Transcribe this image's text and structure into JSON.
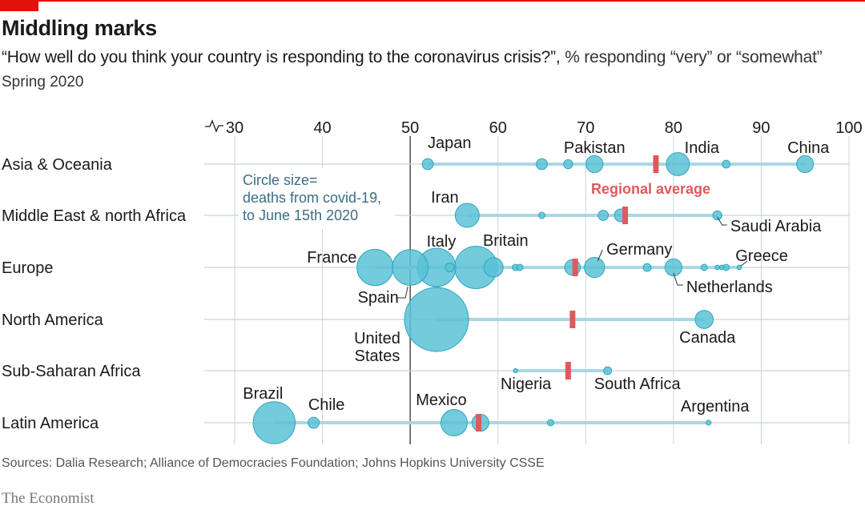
{
  "header": {
    "title": "Middling marks",
    "question": "“How well do you think your country is responding to the coronavirus crisis?”,",
    "unit": " % responding “very” or “somewhat”",
    "period": "Spring 2020"
  },
  "footer": {
    "source": "Sources: Dalia Research; Alliance of Democracies Foundation; Johns Hopkins University CSSE",
    "brand": "The Economist"
  },
  "colors": {
    "accent": "#e3120b",
    "dot": "#5bc2d6",
    "dot_stroke": "#2fa6bd",
    "line": "#a9d7e4",
    "average": "#e0595c",
    "grid": "#c9d3d9",
    "axis50": "#333333"
  },
  "chart_data": {
    "type": "scatter",
    "x_axis": {
      "min": 30,
      "max": 100,
      "ticks": [
        30,
        40,
        50,
        60,
        70,
        80,
        90,
        100
      ]
    },
    "size_legend": [
      "Circle size=",
      "deaths from covid-19,",
      "to June 15th 2020"
    ],
    "average_label": "Regional average",
    "regions": [
      {
        "name": "Asia & Oceania",
        "average": 78,
        "points": [
          {
            "label": "Japan",
            "x": 52,
            "size": 3
          },
          {
            "x": 65,
            "size": 3
          },
          {
            "x": 68,
            "size": 2
          },
          {
            "label": "Pakistan",
            "x": 71,
            "size": 7
          },
          {
            "label": "India",
            "x": 80.5,
            "size": 13
          },
          {
            "x": 86,
            "size": 1.5
          },
          {
            "label": "China",
            "x": 95,
            "size": 7
          }
        ]
      },
      {
        "name": "Middle East & north Africa",
        "average": 74.5,
        "points": [
          {
            "label": "Iran",
            "x": 56.5,
            "size": 14
          },
          {
            "x": 65,
            "size": 1
          },
          {
            "x": 72,
            "size": 2.5
          },
          {
            "x": 74,
            "size": 4
          },
          {
            "label": "Saudi Arabia",
            "x": 85,
            "size": 2
          }
        ]
      },
      {
        "name": "Europe",
        "average": 68.8,
        "points": [
          {
            "label": "France",
            "x": 46,
            "size": 32
          },
          {
            "label": "Spain",
            "x": 50,
            "size": 31
          },
          {
            "label": "Italy",
            "x": 53,
            "size": 36
          },
          {
            "x": 54.5,
            "size": 2
          },
          {
            "label": "Britain",
            "x": 57.5,
            "size": 44
          },
          {
            "x": 59.5,
            "size": 9
          },
          {
            "x": 62,
            "size": 1
          },
          {
            "x": 62.5,
            "size": 1
          },
          {
            "x": 68.5,
            "size": 6
          },
          {
            "label": "Germany",
            "x": 71,
            "size": 10
          },
          {
            "x": 77,
            "size": 1.5
          },
          {
            "label": "Netherlands",
            "x": 80,
            "size": 7
          },
          {
            "x": 83.5,
            "size": 1
          },
          {
            "x": 85,
            "size": 0.5
          },
          {
            "x": 85.5,
            "size": 0.5
          },
          {
            "x": 86,
            "size": 1
          },
          {
            "label": "Greece",
            "x": 87.5,
            "size": 0.5
          }
        ]
      },
      {
        "name": "North America",
        "average": 68.5,
        "points": [
          {
            "label": "United States",
            "x": 53,
            "size": 100
          },
          {
            "label": "Canada",
            "x": 83.5,
            "size": 8
          }
        ]
      },
      {
        "name": "Sub-Saharan Africa",
        "average": 68,
        "points": [
          {
            "label": "Nigeria",
            "x": 62,
            "size": 0.3
          },
          {
            "label": "South Africa",
            "x": 72.5,
            "size": 1.5
          }
        ]
      },
      {
        "name": "Latin America",
        "average": 57.8,
        "points": [
          {
            "label": "Brazil",
            "x": 34.5,
            "size": 43
          },
          {
            "label": "Chile",
            "x": 39,
            "size": 3
          },
          {
            "label": "Mexico",
            "x": 55,
            "size": 17
          },
          {
            "x": 58,
            "size": 7
          },
          {
            "x": 66,
            "size": 1
          },
          {
            "label": "Argentina",
            "x": 84,
            "size": 0.6
          }
        ]
      }
    ]
  }
}
